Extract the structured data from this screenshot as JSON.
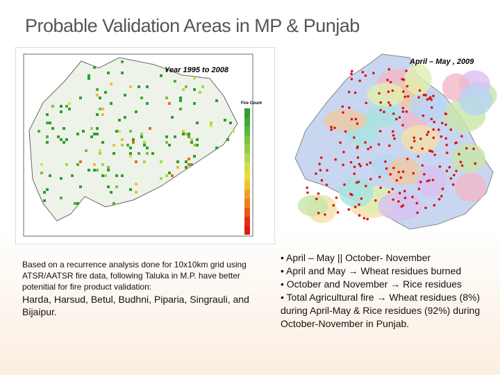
{
  "header": {
    "title": "Probable Validation Areas in MP & Punjab"
  },
  "left_panel": {
    "map_label": "Year 1995 to 2008",
    "legend_title": "Fire Count",
    "caption": "Based on a recurrence analysis done for 10x10km grid using ATSR/AATSR fire data, following Taluka in M.P. have better potenitial for fire product validation:",
    "talukas": "Harda, Harsud, Betul, Budhni, Piparia, Singrauli, and Bijaipur."
  },
  "right_panel": {
    "map_label": "April – May , 2009",
    "bullets": [
      "• April – May || October- November",
      "• April and May → Wheat residues burned",
      "• October and November → Rice residues",
      "• Total Agricultural fire → Wheat residues (8%) during April-May & Rice residues (92%) during October-November in Punjab."
    ]
  }
}
